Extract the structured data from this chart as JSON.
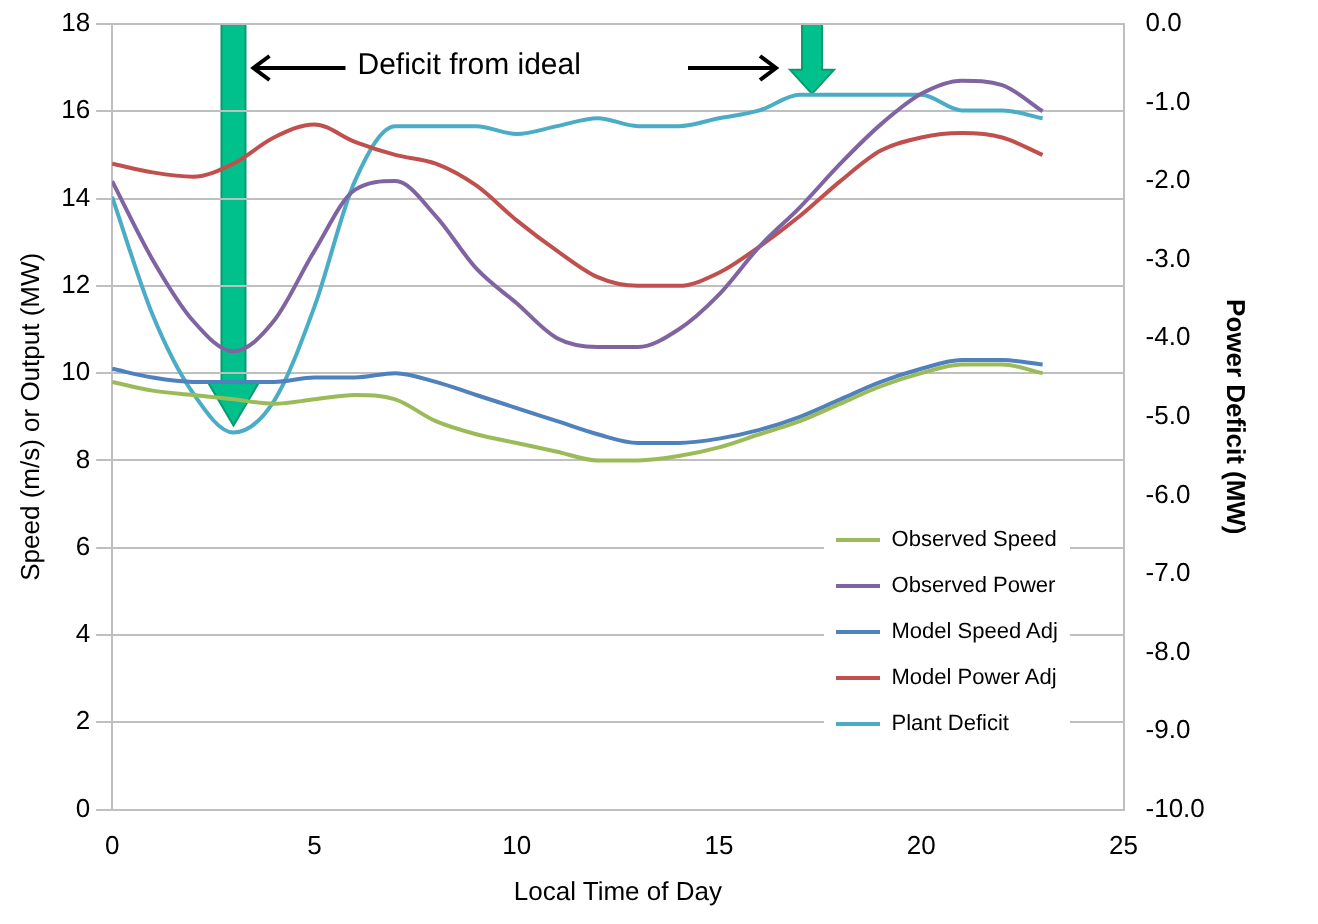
{
  "chart_data": {
    "type": "line",
    "xlabel": "Local Time of Day",
    "ylabel": "Speed (m/s) or Output (MW)",
    "y2label": "Power Deficit (MW)",
    "x": [
      0,
      1,
      2,
      3,
      4,
      5,
      6,
      7,
      8,
      9,
      10,
      11,
      12,
      13,
      14,
      15,
      16,
      17,
      18,
      19,
      20,
      21,
      22,
      23
    ],
    "series": [
      {
        "name": "Observed Speed",
        "color": "#9bbb59",
        "values": [
          9.8,
          9.6,
          9.5,
          9.4,
          9.3,
          9.4,
          9.5,
          9.4,
          8.9,
          8.6,
          8.4,
          8.2,
          8.0,
          8.0,
          8.1,
          8.3,
          8.6,
          8.9,
          9.3,
          9.7,
          10.0,
          10.2,
          10.2,
          10.0
        ]
      },
      {
        "name": "Observed Power",
        "color": "#8064a2",
        "values": [
          14.4,
          12.6,
          11.2,
          10.5,
          11.2,
          12.8,
          14.2,
          14.4,
          13.6,
          12.4,
          11.6,
          10.8,
          10.6,
          10.6,
          11.0,
          11.8,
          12.9,
          13.8,
          14.8,
          15.7,
          16.4,
          16.7,
          16.6,
          16.0
        ]
      },
      {
        "name": "Model Speed Adj",
        "color": "#4f81bd",
        "values": [
          10.1,
          9.9,
          9.8,
          9.8,
          9.8,
          9.9,
          9.9,
          10.0,
          9.8,
          9.5,
          9.2,
          8.9,
          8.6,
          8.4,
          8.4,
          8.5,
          8.7,
          9.0,
          9.4,
          9.8,
          10.1,
          10.3,
          10.3,
          10.2
        ]
      },
      {
        "name": "Model Power Adj",
        "color": "#c0504d",
        "values": [
          14.8,
          14.6,
          14.5,
          14.8,
          15.4,
          15.7,
          15.3,
          15.0,
          14.8,
          14.3,
          13.5,
          12.8,
          12.2,
          12.0,
          12.0,
          12.3,
          12.9,
          13.6,
          14.4,
          15.1,
          15.4,
          15.5,
          15.4,
          15.0
        ]
      },
      {
        "name": "Plant Deficit",
        "color": "#4bacc6",
        "axis": "y2",
        "values": [
          -2.2,
          -3.7,
          -4.7,
          -5.2,
          -4.8,
          -3.6,
          -2.0,
          -1.3,
          -1.3,
          -1.3,
          -1.4,
          -1.3,
          -1.2,
          -1.3,
          -1.3,
          -1.2,
          -1.1,
          -0.9,
          -0.9,
          -0.9,
          -0.9,
          -1.1,
          -1.1,
          -1.2
        ]
      }
    ],
    "xlim": [
      0,
      25
    ],
    "xticks": [
      0,
      5,
      10,
      15,
      20,
      25
    ],
    "ylim": [
      0,
      18
    ],
    "yticks": [
      0,
      2,
      4,
      6,
      8,
      10,
      12,
      14,
      16,
      18
    ],
    "y2lim": [
      -10,
      0
    ],
    "y2ticks": [
      {
        "value": 0,
        "label": "0.0"
      },
      {
        "value": -1,
        "label": "-1.0"
      },
      {
        "value": -2,
        "label": "-2.0"
      },
      {
        "value": -3,
        "label": "-3.0"
      },
      {
        "value": -4,
        "label": "-4.0"
      },
      {
        "value": -5,
        "label": "-5.0"
      },
      {
        "value": -6,
        "label": "-6.0"
      },
      {
        "value": -7,
        "label": "-7.0"
      },
      {
        "value": -8,
        "label": "-8.0"
      },
      {
        "value": -9,
        "label": "-9.0"
      },
      {
        "value": -10,
        "label": "-10.0"
      }
    ],
    "grid": "y",
    "legend": "bottom right",
    "marker": "none",
    "line_style": "solid",
    "annotations": [
      "Deficit from ideal"
    ]
  }
}
